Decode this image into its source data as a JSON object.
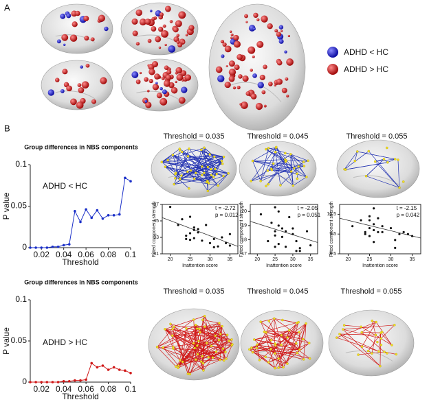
{
  "labels": {
    "panel_a": "A",
    "panel_b": "B",
    "legend": [
      {
        "label": "ADHD < HC",
        "color": "#1414c8"
      },
      {
        "label": "ADHD > HC",
        "color": "#d01818"
      }
    ],
    "rows": [
      {
        "title": "Group differences in NBS components",
        "group": "ADHD < HC",
        "thresholds": [
          "Threshold = 0.035",
          "Threshold = 0.045",
          "Threshold = 0.055"
        ]
      },
      {
        "title": "Group differences in NBS components",
        "group": "ADHD > HC",
        "thresholds": [
          "Threshold = 0.035",
          "Threshold = 0.045",
          "Threshold = 0.055"
        ]
      }
    ]
  },
  "chart_data": [
    {
      "type": "line",
      "x_label": "Threshold",
      "y_label": "P value",
      "color": "#1a2fc8",
      "x": [
        0.01,
        0.015,
        0.02,
        0.025,
        0.03,
        0.035,
        0.04,
        0.045,
        0.05,
        0.055,
        0.06,
        0.065,
        0.07,
        0.075,
        0.08,
        0.085,
        0.09,
        0.095,
        0.1
      ],
      "values": [
        0,
        0,
        0,
        0,
        0.001,
        0.001,
        0.003,
        0.004,
        0.044,
        0.031,
        0.046,
        0.036,
        0.045,
        0.035,
        0.039,
        0.039,
        0.04,
        0.084,
        0.08
      ],
      "xlim": [
        0.01,
        0.1
      ],
      "xticks": [
        0.02,
        0.04,
        0.06,
        0.08,
        0.1
      ],
      "ylim": [
        0,
        0.1
      ],
      "yticks": [
        0,
        0.05,
        0.1
      ]
    },
    {
      "type": "line",
      "x_label": "Threshold",
      "y_label": "P value",
      "color": "#d01818",
      "x": [
        0.01,
        0.015,
        0.02,
        0.025,
        0.03,
        0.035,
        0.04,
        0.045,
        0.05,
        0.055,
        0.06,
        0.065,
        0.07,
        0.075,
        0.08,
        0.085,
        0.09,
        0.095,
        0.1
      ],
      "values": [
        0,
        0,
        0,
        0,
        0,
        0,
        0.001,
        0.001,
        0.002,
        0.002,
        0.003,
        0.023,
        0.018,
        0.02,
        0.015,
        0.018,
        0.015,
        0.014,
        0.011
      ],
      "xlim": [
        0.01,
        0.1
      ],
      "xticks": [
        0.02,
        0.04,
        0.06,
        0.08,
        0.1
      ],
      "ylim": [
        0,
        0.1
      ],
      "yticks": [
        0,
        0.05,
        0.1
      ]
    },
    {
      "type": "scatter",
      "x_label": "Inattention score",
      "y_label": "Fitted component strength",
      "annotations": [
        "t = -2.72",
        "p = 0.012"
      ],
      "x": [
        20,
        22,
        23,
        24,
        24,
        25,
        25,
        26,
        26,
        27,
        27,
        28,
        26,
        25,
        29,
        30,
        31,
        31,
        32,
        33,
        34,
        35,
        35
      ],
      "values": [
        36.7,
        34.5,
        35.2,
        33.2,
        32.8,
        33.5,
        35.5,
        33.9,
        34.2,
        34.0,
        33.6,
        32.6,
        32.9,
        32.7,
        34.5,
        32.3,
        32.8,
        31.8,
        31.9,
        33.0,
        32.3,
        33.4,
        32.0
      ],
      "trend_line": {
        "x": [
          18,
          37
        ],
        "y": [
          35.4,
          31.9
        ]
      },
      "xlim": [
        18,
        37
      ],
      "xticks": [
        20,
        25,
        30,
        35
      ],
      "ylim": [
        31,
        37
      ],
      "yticks": [
        31,
        33,
        35,
        37
      ]
    },
    {
      "type": "scatter",
      "x_label": "Inattention score",
      "y_label": "Fitted component strength",
      "annotations": [
        "t = -2.05",
        "p = 0.051"
      ],
      "x": [
        21,
        23,
        24,
        25,
        25,
        25,
        26,
        26,
        27,
        27,
        26,
        28,
        30,
        30,
        31,
        31,
        32,
        32,
        25,
        28,
        34,
        35,
        29
      ],
      "values": [
        19.8,
        17.9,
        19.2,
        18.6,
        18.3,
        20.3,
        19.0,
        20.0,
        18.8,
        18.2,
        17.7,
        17.5,
        18.8,
        18.4,
        17.9,
        17.2,
        17.4,
        17.2,
        17.5,
        18.6,
        18.6,
        17.6,
        19.6
      ],
      "trend_line": {
        "x": [
          18,
          37
        ],
        "y": [
          19.3,
          17.8
        ]
      },
      "xlim": [
        18,
        37
      ],
      "xticks": [
        20,
        25,
        30,
        35
      ],
      "ylim": [
        17,
        20.5
      ],
      "yticks": [
        17,
        18,
        19,
        20
      ]
    },
    {
      "type": "scatter",
      "x_label": "Inattention score",
      "y_label": "Fitted component strength",
      "annotations": [
        "t = -2.15",
        "p = 0.042"
      ],
      "x": [
        21,
        23,
        24,
        25,
        25,
        25,
        26,
        26,
        27,
        27,
        24,
        28,
        26,
        28,
        30,
        31,
        31,
        32,
        33,
        34,
        35,
        26,
        25
      ],
      "values": [
        9.9,
        10.2,
        9.6,
        10.2,
        10.4,
        9.4,
        9.7,
        10.0,
        9.6,
        10.3,
        9.5,
        9.9,
        9.1,
        9.6,
        9.8,
        9.2,
        8.8,
        9.5,
        9.6,
        9.5,
        9.4,
        10.8,
        9.8
      ],
      "trend_line": {
        "x": [
          18,
          37
        ],
        "y": [
          10.3,
          9.3
        ]
      },
      "xlim": [
        18,
        37
      ],
      "xticks": [
        20,
        25,
        30,
        35
      ],
      "ylim": [
        8.5,
        11
      ],
      "yticks": [
        8.5,
        9.5,
        10.5
      ]
    }
  ]
}
